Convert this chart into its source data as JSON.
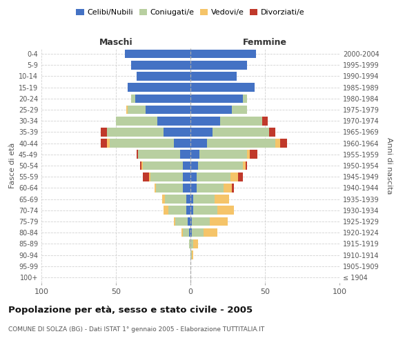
{
  "age_groups": [
    "100+",
    "95-99",
    "90-94",
    "85-89",
    "80-84",
    "75-79",
    "70-74",
    "65-69",
    "60-64",
    "55-59",
    "50-54",
    "45-49",
    "40-44",
    "35-39",
    "30-34",
    "25-29",
    "20-24",
    "15-19",
    "10-14",
    "5-9",
    "0-4"
  ],
  "birth_years": [
    "≤ 1904",
    "1905-1909",
    "1910-1914",
    "1915-1919",
    "1920-1924",
    "1925-1929",
    "1930-1934",
    "1935-1939",
    "1940-1944",
    "1945-1949",
    "1950-1954",
    "1955-1959",
    "1960-1964",
    "1965-1969",
    "1970-1974",
    "1975-1979",
    "1980-1984",
    "1985-1989",
    "1990-1994",
    "1995-1999",
    "2000-2004"
  ],
  "male": {
    "celibi": [
      0,
      0,
      0,
      0,
      1,
      2,
      3,
      3,
      5,
      5,
      5,
      7,
      11,
      18,
      22,
      30,
      37,
      42,
      36,
      40,
      44
    ],
    "coniugati": [
      0,
      0,
      0,
      1,
      4,
      8,
      12,
      14,
      18,
      22,
      27,
      28,
      43,
      38,
      28,
      12,
      3,
      0,
      0,
      0,
      0
    ],
    "vedovi": [
      0,
      0,
      0,
      0,
      1,
      1,
      3,
      2,
      1,
      1,
      1,
      0,
      2,
      0,
      0,
      1,
      0,
      0,
      0,
      0,
      0
    ],
    "divorziati": [
      0,
      0,
      0,
      0,
      0,
      0,
      0,
      0,
      0,
      4,
      1,
      1,
      4,
      4,
      0,
      0,
      0,
      0,
      0,
      0,
      0
    ]
  },
  "female": {
    "nubili": [
      0,
      0,
      0,
      0,
      1,
      1,
      2,
      2,
      4,
      4,
      5,
      6,
      11,
      15,
      20,
      28,
      35,
      43,
      31,
      38,
      44
    ],
    "coniugate": [
      0,
      0,
      1,
      2,
      8,
      12,
      16,
      14,
      18,
      23,
      30,
      32,
      46,
      38,
      28,
      10,
      3,
      0,
      0,
      0,
      0
    ],
    "vedove": [
      0,
      0,
      1,
      3,
      9,
      12,
      11,
      10,
      6,
      5,
      2,
      2,
      3,
      0,
      0,
      0,
      0,
      0,
      0,
      0,
      0
    ],
    "divorziate": [
      0,
      0,
      0,
      0,
      0,
      0,
      0,
      0,
      1,
      3,
      1,
      5,
      5,
      4,
      4,
      0,
      0,
      0,
      0,
      0,
      0
    ]
  },
  "colors": {
    "celibi": "#4472c4",
    "coniugati": "#b8cfa0",
    "vedovi": "#f5c469",
    "divorziati": "#c0392b"
  },
  "title": "Popolazione per età, sesso e stato civile - 2005",
  "subtitle": "COMUNE DI SOLZA (BG) - Dati ISTAT 1° gennaio 2005 - Elaborazione TUTTITALIA.IT",
  "xlabel_left": "Maschi",
  "xlabel_right": "Femmine",
  "ylabel_left": "Fasce di età",
  "ylabel_right": "Anni di nascita",
  "xlim": 100,
  "legend_labels": [
    "Celibi/Nubili",
    "Coniugati/e",
    "Vedovi/e",
    "Divorziati/e"
  ],
  "background_color": "#ffffff",
  "grid_color": "#cccccc"
}
